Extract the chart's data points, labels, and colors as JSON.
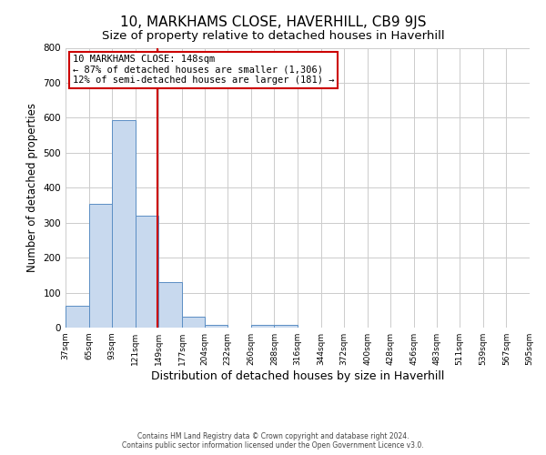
{
  "title": "10, MARKHAMS CLOSE, HAVERHILL, CB9 9JS",
  "subtitle": "Size of property relative to detached houses in Haverhill",
  "xlabel": "Distribution of detached houses by size in Haverhill",
  "ylabel": "Number of detached properties",
  "bin_edges": [
    37,
    65,
    93,
    121,
    149,
    177,
    204,
    232,
    260,
    288,
    316,
    344,
    372,
    400,
    428,
    456,
    483,
    511,
    539,
    567,
    595
  ],
  "bin_counts": [
    63,
    355,
    592,
    320,
    130,
    30,
    8,
    0,
    8,
    8,
    0,
    0,
    0,
    0,
    0,
    0,
    0,
    0,
    0,
    0
  ],
  "bar_facecolor": "#c8d9ee",
  "bar_edgecolor": "#5b8ec4",
  "vline_x": 148,
  "vline_color": "#cc0000",
  "ylim": [
    0,
    800
  ],
  "yticks": [
    0,
    100,
    200,
    300,
    400,
    500,
    600,
    700,
    800
  ],
  "annotation_box_text": [
    "10 MARKHAMS CLOSE: 148sqm",
    "← 87% of detached houses are smaller (1,306)",
    "12% of semi-detached houses are larger (181) →"
  ],
  "annotation_box_color": "#cc0000",
  "grid_color": "#cccccc",
  "background_color": "#ffffff",
  "footer_lines": [
    "Contains HM Land Registry data © Crown copyright and database right 2024.",
    "Contains public sector information licensed under the Open Government Licence v3.0."
  ],
  "title_fontsize": 11,
  "subtitle_fontsize": 9.5,
  "xlabel_fontsize": 9,
  "ylabel_fontsize": 8.5,
  "ann_fontsize": 7.5,
  "tick_fontsize": 6.5,
  "ytick_fontsize": 7.5,
  "footer_fontsize": 5.5,
  "tick_labels": [
    "37sqm",
    "65sqm",
    "93sqm",
    "121sqm",
    "149sqm",
    "177sqm",
    "204sqm",
    "232sqm",
    "260sqm",
    "288sqm",
    "316sqm",
    "344sqm",
    "372sqm",
    "400sqm",
    "428sqm",
    "456sqm",
    "483sqm",
    "511sqm",
    "539sqm",
    "567sqm",
    "595sqm"
  ]
}
